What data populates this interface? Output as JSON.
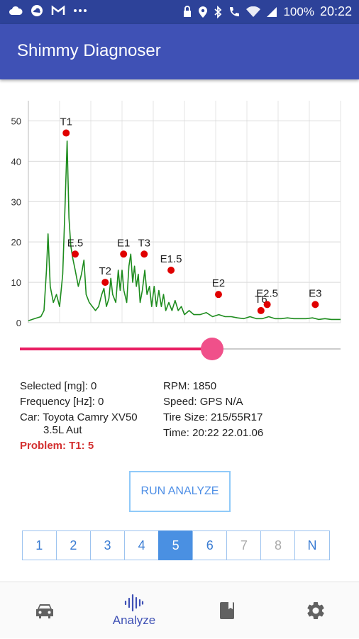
{
  "status_bar": {
    "battery": "100%",
    "time": "20:22",
    "left_icons": [
      "cloud-icon",
      "cloud-icon",
      "gmail-icon",
      "more-icon"
    ],
    "right_icons": [
      "lock-icon",
      "location-icon",
      "bluetooth-icon",
      "wifi-call-icon",
      "wifi-icon",
      "signal-icon"
    ]
  },
  "app_bar": {
    "title": "Shimmy Diagnoser"
  },
  "chart_data": {
    "type": "line",
    "yticks": [
      0,
      10,
      20,
      30,
      40,
      50
    ],
    "ylim": [
      0,
      55
    ],
    "xlim": [
      0,
      100
    ],
    "grid": true,
    "series": [
      {
        "values": [
          [
            0,
            0.5
          ],
          [
            2,
            1
          ],
          [
            4,
            1.5
          ],
          [
            5,
            3
          ],
          [
            5.8,
            13
          ],
          [
            6.3,
            22
          ],
          [
            7,
            9
          ],
          [
            8,
            5
          ],
          [
            9,
            7
          ],
          [
            10,
            4
          ],
          [
            11,
            12
          ],
          [
            11.7,
            28
          ],
          [
            12.4,
            45
          ],
          [
            13,
            26
          ],
          [
            13.6,
            19
          ],
          [
            14.2,
            16
          ],
          [
            15,
            13
          ],
          [
            16,
            9
          ],
          [
            17,
            12
          ],
          [
            17.8,
            15.5
          ],
          [
            18.5,
            7
          ],
          [
            19.5,
            5
          ],
          [
            20.5,
            4
          ],
          [
            21.5,
            3
          ],
          [
            22.5,
            4
          ],
          [
            23.5,
            7
          ],
          [
            24.2,
            8.5
          ],
          [
            25,
            4
          ],
          [
            25.8,
            6
          ],
          [
            26.4,
            11
          ],
          [
            27,
            7
          ],
          [
            28,
            5
          ],
          [
            28.8,
            13
          ],
          [
            29.4,
            8
          ],
          [
            30,
            13
          ],
          [
            30.6,
            8
          ],
          [
            31.5,
            5
          ],
          [
            32.2,
            14
          ],
          [
            32.8,
            17
          ],
          [
            33.4,
            10
          ],
          [
            34,
            14
          ],
          [
            34.6,
            9
          ],
          [
            35.2,
            12
          ],
          [
            35.8,
            5
          ],
          [
            36.5,
            8
          ],
          [
            37.3,
            13
          ],
          [
            38,
            7
          ],
          [
            38.8,
            9
          ],
          [
            39.5,
            4
          ],
          [
            40.3,
            9
          ],
          [
            41,
            4
          ],
          [
            41.8,
            8
          ],
          [
            42.6,
            4
          ],
          [
            43.3,
            7
          ],
          [
            44,
            3
          ],
          [
            45,
            5
          ],
          [
            46,
            3
          ],
          [
            47,
            5.5
          ],
          [
            48,
            3
          ],
          [
            49,
            4
          ],
          [
            50,
            2
          ],
          [
            51.5,
            3
          ],
          [
            53,
            2
          ],
          [
            55,
            2
          ],
          [
            57,
            2.5
          ],
          [
            59,
            1.5
          ],
          [
            61,
            2
          ],
          [
            63,
            1.5
          ],
          [
            65,
            1.5
          ],
          [
            67,
            1.2
          ],
          [
            69,
            1
          ],
          [
            71,
            1.5
          ],
          [
            73,
            1
          ],
          [
            75,
            1
          ],
          [
            77,
            1.5
          ],
          [
            79,
            1
          ],
          [
            81,
            1
          ],
          [
            83,
            1.2
          ],
          [
            85,
            1
          ],
          [
            87,
            1
          ],
          [
            89,
            1
          ],
          [
            91,
            1.2
          ],
          [
            93,
            0.8
          ],
          [
            95,
            1
          ],
          [
            97,
            0.8
          ],
          [
            100,
            0.8
          ]
        ]
      }
    ],
    "markers": [
      {
        "label": "T1",
        "x": 12.1,
        "y": 47
      },
      {
        "label": "E.5",
        "x": 15,
        "y": 17
      },
      {
        "label": "T2",
        "x": 24.6,
        "y": 10
      },
      {
        "label": "E1",
        "x": 30.5,
        "y": 17
      },
      {
        "label": "T3",
        "x": 37.1,
        "y": 17
      },
      {
        "label": "E1.5",
        "x": 45.7,
        "y": 13
      },
      {
        "label": "E2",
        "x": 60.9,
        "y": 7
      },
      {
        "label": "T6",
        "x": 74.5,
        "y": 3
      },
      {
        "label": "E2.5",
        "x": 76.5,
        "y": 4.5
      },
      {
        "label": "E3",
        "x": 91.9,
        "y": 4.5
      }
    ]
  },
  "slider": {
    "value": 60
  },
  "info": {
    "selected": "Selected [mg]: 0",
    "frequency": "Frequency [Hz]: 0",
    "car": "Car: Toyota Camry XV50",
    "engine": "3.5L Aut",
    "problem": "Problem: T1: 5",
    "rpm": "RPM: 1850",
    "speed": "Speed: GPS N/A",
    "tire": "Tire Size: 215/55R17",
    "time": "Time: 20:22 22.01.06"
  },
  "run_button": {
    "label": "RUN ANALYZE"
  },
  "pager": {
    "pages": [
      {
        "label": "1",
        "state": "normal"
      },
      {
        "label": "2",
        "state": "normal"
      },
      {
        "label": "3",
        "state": "normal"
      },
      {
        "label": "4",
        "state": "normal"
      },
      {
        "label": "5",
        "state": "active"
      },
      {
        "label": "6",
        "state": "normal"
      },
      {
        "label": "7",
        "state": "disabled"
      },
      {
        "label": "8",
        "state": "disabled"
      },
      {
        "label": "N",
        "state": "normal"
      }
    ]
  },
  "bottom_nav": {
    "analyze_label": "Analyze",
    "items": [
      "car-icon",
      "waveform-icon",
      "book-icon",
      "gear-icon"
    ],
    "active_color": "#3f51b5",
    "inactive_color": "#616161"
  },
  "colors": {
    "app_bar": "#3f51b5",
    "status_bar": "#2d4299",
    "line": "#1e8c1e",
    "marker": "#e00000",
    "slider": "#e91e63"
  }
}
